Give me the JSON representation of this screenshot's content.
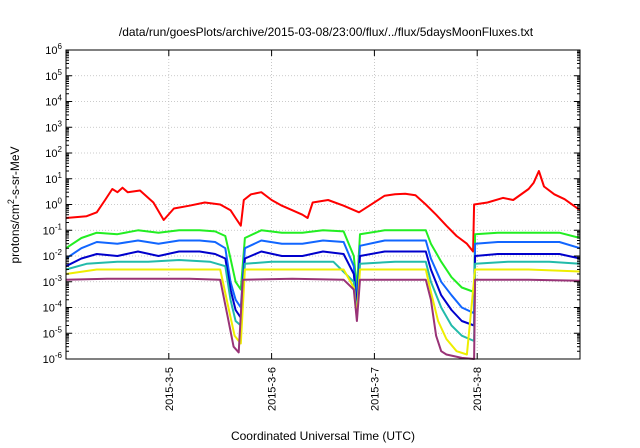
{
  "chart_data": {
    "type": "line",
    "title": "/data/run/goesPlots/archive/2015-03-08/23:00/flux/../flux/5daysMoonFluxes.txt",
    "xlabel": "Coordinated Universal Time (UTC)",
    "ylabel_html": [
      "protons/cm",
      "2",
      "-s-sr-MeV"
    ],
    "yscale": "log",
    "ylim": [
      1e-06,
      1000000.0
    ],
    "xlim": [
      0.0,
      5.0
    ],
    "x_ticks": [
      {
        "x": 1.0,
        "label": "2015-3-5"
      },
      {
        "x": 2.0,
        "label": "2015-3-6"
      },
      {
        "x": 3.0,
        "label": "2015-3-7"
      },
      {
        "x": 4.0,
        "label": "2015-3-8"
      }
    ],
    "y_tick_exponents": [
      -6,
      -5,
      -4,
      -3,
      -2,
      -1,
      0,
      1,
      2,
      3,
      4,
      5,
      6
    ],
    "y_tick_base": "10",
    "grid": true,
    "series": [
      {
        "color": "#ff0000",
        "points": [
          [
            0.0,
            0.3
          ],
          [
            0.2,
            0.35
          ],
          [
            0.3,
            0.5
          ],
          [
            0.38,
            1.5
          ],
          [
            0.45,
            4
          ],
          [
            0.5,
            3
          ],
          [
            0.55,
            4.5
          ],
          [
            0.6,
            3
          ],
          [
            0.72,
            3.5
          ],
          [
            0.85,
            1.2
          ],
          [
            0.95,
            0.25
          ],
          [
            1.05,
            0.7
          ],
          [
            1.2,
            0.9
          ],
          [
            1.35,
            1.2
          ],
          [
            1.5,
            1.0
          ],
          [
            1.6,
            0.6
          ],
          [
            1.65,
            0.3
          ],
          [
            1.7,
            0.15
          ],
          [
            1.73,
            1.5
          ],
          [
            1.8,
            2.5
          ],
          [
            1.9,
            3
          ],
          [
            2.0,
            1.5
          ],
          [
            2.1,
            0.9
          ],
          [
            2.2,
            0.6
          ],
          [
            2.3,
            0.4
          ],
          [
            2.35,
            0.3
          ],
          [
            2.4,
            1.2
          ],
          [
            2.55,
            1.5
          ],
          [
            2.7,
            0.9
          ],
          [
            2.85,
            0.5
          ],
          [
            2.95,
            0.9
          ],
          [
            3.1,
            2.2
          ],
          [
            3.2,
            2.5
          ],
          [
            3.3,
            2.6
          ],
          [
            3.4,
            2.3
          ],
          [
            3.5,
            1.0
          ],
          [
            3.6,
            0.4
          ],
          [
            3.7,
            0.15
          ],
          [
            3.8,
            0.06
          ],
          [
            3.9,
            0.03
          ],
          [
            3.96,
            0.015
          ],
          [
            3.97,
            1.0
          ],
          [
            4.1,
            1.2
          ],
          [
            4.25,
            1.8
          ],
          [
            4.35,
            1.5
          ],
          [
            4.5,
            4.0
          ],
          [
            4.55,
            7
          ],
          [
            4.6,
            20
          ],
          [
            4.65,
            5
          ],
          [
            4.75,
            2.5
          ],
          [
            4.85,
            1.6
          ],
          [
            5.0,
            0.6
          ]
        ]
      },
      {
        "color": "#22ee22",
        "points": [
          [
            0.0,
            0.02
          ],
          [
            0.15,
            0.05
          ],
          [
            0.3,
            0.08
          ],
          [
            0.5,
            0.07
          ],
          [
            0.7,
            0.1
          ],
          [
            0.9,
            0.08
          ],
          [
            1.1,
            0.1
          ],
          [
            1.3,
            0.1
          ],
          [
            1.45,
            0.09
          ],
          [
            1.55,
            0.06
          ],
          [
            1.6,
            0.008
          ],
          [
            1.65,
            0.001
          ],
          [
            1.7,
            0.0005
          ],
          [
            1.74,
            0.05
          ],
          [
            1.9,
            0.1
          ],
          [
            2.1,
            0.08
          ],
          [
            2.3,
            0.08
          ],
          [
            2.5,
            0.1
          ],
          [
            2.7,
            0.09
          ],
          [
            2.8,
            0.01
          ],
          [
            2.83,
            0.0005
          ],
          [
            2.86,
            0.07
          ],
          [
            3.1,
            0.1
          ],
          [
            3.3,
            0.1
          ],
          [
            3.5,
            0.1
          ],
          [
            3.55,
            0.03
          ],
          [
            3.65,
            0.006
          ],
          [
            3.75,
            0.0015
          ],
          [
            3.85,
            0.0006
          ],
          [
            3.97,
            0.0004
          ],
          [
            3.98,
            0.07
          ],
          [
            4.2,
            0.08
          ],
          [
            4.5,
            0.08
          ],
          [
            4.8,
            0.08
          ],
          [
            5.0,
            0.05
          ]
        ]
      },
      {
        "color": "#1166ff",
        "points": [
          [
            0.0,
            0.008
          ],
          [
            0.15,
            0.02
          ],
          [
            0.3,
            0.035
          ],
          [
            0.5,
            0.03
          ],
          [
            0.7,
            0.04
          ],
          [
            0.9,
            0.03
          ],
          [
            1.1,
            0.04
          ],
          [
            1.3,
            0.04
          ],
          [
            1.45,
            0.035
          ],
          [
            1.55,
            0.02
          ],
          [
            1.6,
            0.001
          ],
          [
            1.65,
            0.0002
          ],
          [
            1.7,
            0.0001
          ],
          [
            1.74,
            0.02
          ],
          [
            1.9,
            0.04
          ],
          [
            2.1,
            0.03
          ],
          [
            2.3,
            0.03
          ],
          [
            2.5,
            0.04
          ],
          [
            2.7,
            0.035
          ],
          [
            2.8,
            0.004
          ],
          [
            2.83,
            0.0002
          ],
          [
            2.86,
            0.025
          ],
          [
            3.1,
            0.04
          ],
          [
            3.3,
            0.04
          ],
          [
            3.5,
            0.04
          ],
          [
            3.55,
            0.008
          ],
          [
            3.65,
            0.001
          ],
          [
            3.75,
            0.0003
          ],
          [
            3.85,
            0.0001
          ],
          [
            3.97,
            6e-05
          ],
          [
            3.98,
            0.03
          ],
          [
            4.2,
            0.035
          ],
          [
            4.5,
            0.035
          ],
          [
            4.8,
            0.035
          ],
          [
            5.0,
            0.02
          ]
        ]
      },
      {
        "color": "#0000cc",
        "points": [
          [
            0.0,
            0.004
          ],
          [
            0.15,
            0.008
          ],
          [
            0.3,
            0.012
          ],
          [
            0.5,
            0.01
          ],
          [
            0.7,
            0.015
          ],
          [
            0.9,
            0.01
          ],
          [
            1.1,
            0.015
          ],
          [
            1.3,
            0.015
          ],
          [
            1.45,
            0.012
          ],
          [
            1.55,
            0.008
          ],
          [
            1.6,
            0.0005
          ],
          [
            1.65,
            8e-05
          ],
          [
            1.7,
            4e-05
          ],
          [
            1.74,
            0.008
          ],
          [
            1.9,
            0.015
          ],
          [
            2.1,
            0.01
          ],
          [
            2.3,
            0.01
          ],
          [
            2.5,
            0.015
          ],
          [
            2.7,
            0.012
          ],
          [
            2.8,
            0.002
          ],
          [
            2.83,
            0.0001
          ],
          [
            2.86,
            0.01
          ],
          [
            3.1,
            0.015
          ],
          [
            3.3,
            0.015
          ],
          [
            3.5,
            0.015
          ],
          [
            3.55,
            0.003
          ],
          [
            3.65,
            0.0003
          ],
          [
            3.75,
            8e-05
          ],
          [
            3.85,
            3e-05
          ],
          [
            3.97,
            2e-05
          ],
          [
            3.98,
            0.01
          ],
          [
            4.2,
            0.012
          ],
          [
            4.5,
            0.012
          ],
          [
            4.8,
            0.012
          ],
          [
            5.0,
            0.008
          ]
        ]
      },
      {
        "color": "#22bbaa",
        "points": [
          [
            0.0,
            0.003
          ],
          [
            0.2,
            0.005
          ],
          [
            0.5,
            0.006
          ],
          [
            0.8,
            0.006
          ],
          [
            1.1,
            0.007
          ],
          [
            1.4,
            0.006
          ],
          [
            1.55,
            0.004
          ],
          [
            1.6,
            0.0002
          ],
          [
            1.65,
            3e-05
          ],
          [
            1.7,
            2e-05
          ],
          [
            1.74,
            0.005
          ],
          [
            2.0,
            0.006
          ],
          [
            2.3,
            0.006
          ],
          [
            2.6,
            0.006
          ],
          [
            2.8,
            0.001
          ],
          [
            2.83,
            5e-05
          ],
          [
            2.86,
            0.005
          ],
          [
            3.2,
            0.006
          ],
          [
            3.5,
            0.006
          ],
          [
            3.55,
            0.001
          ],
          [
            3.65,
            0.0001
          ],
          [
            3.75,
            2e-05
          ],
          [
            3.85,
            8e-06
          ],
          [
            3.97,
            5e-06
          ],
          [
            3.98,
            0.005
          ],
          [
            4.3,
            0.006
          ],
          [
            4.7,
            0.006
          ],
          [
            5.0,
            0.005
          ]
        ]
      },
      {
        "color": "#eeee00",
        "points": [
          [
            0.0,
            0.002
          ],
          [
            0.3,
            0.003
          ],
          [
            0.7,
            0.003
          ],
          [
            1.1,
            0.003
          ],
          [
            1.5,
            0.003
          ],
          [
            1.58,
            0.0001
          ],
          [
            1.64,
            8e-06
          ],
          [
            1.7,
            4e-06
          ],
          [
            1.74,
            0.003
          ],
          [
            2.2,
            0.003
          ],
          [
            2.7,
            0.003
          ],
          [
            2.8,
            0.0006
          ],
          [
            2.83,
            4e-05
          ],
          [
            2.86,
            0.003
          ],
          [
            3.3,
            0.003
          ],
          [
            3.5,
            0.003
          ],
          [
            3.55,
            0.0004
          ],
          [
            3.62,
            3e-05
          ],
          [
            3.7,
            6e-06
          ],
          [
            3.8,
            2e-06
          ],
          [
            3.9,
            1.5e-06
          ],
          [
            3.98,
            0.003
          ],
          [
            4.5,
            0.003
          ],
          [
            5.0,
            0.0025
          ]
        ]
      },
      {
        "color": "#993377",
        "points": [
          [
            0.0,
            0.0012
          ],
          [
            0.4,
            0.0013
          ],
          [
            0.8,
            0.0013
          ],
          [
            1.2,
            0.0013
          ],
          [
            1.5,
            0.0012
          ],
          [
            1.57,
            5e-05
          ],
          [
            1.63,
            3e-06
          ],
          [
            1.68,
            1.8e-06
          ],
          [
            1.72,
            0.0012
          ],
          [
            2.2,
            0.0013
          ],
          [
            2.7,
            0.0012
          ],
          [
            2.8,
            0.0005
          ],
          [
            2.83,
            3e-05
          ],
          [
            2.86,
            0.0012
          ],
          [
            3.3,
            0.0012
          ],
          [
            3.5,
            0.0012
          ],
          [
            3.55,
            0.0002
          ],
          [
            3.6,
            8e-06
          ],
          [
            3.65,
            2e-06
          ],
          [
            3.7,
            1.5e-06
          ],
          [
            3.85,
            1.1e-06
          ],
          [
            3.97,
            1e-06
          ],
          [
            3.98,
            0.0012
          ],
          [
            4.5,
            0.0012
          ],
          [
            5.0,
            0.0011
          ]
        ]
      }
    ]
  }
}
